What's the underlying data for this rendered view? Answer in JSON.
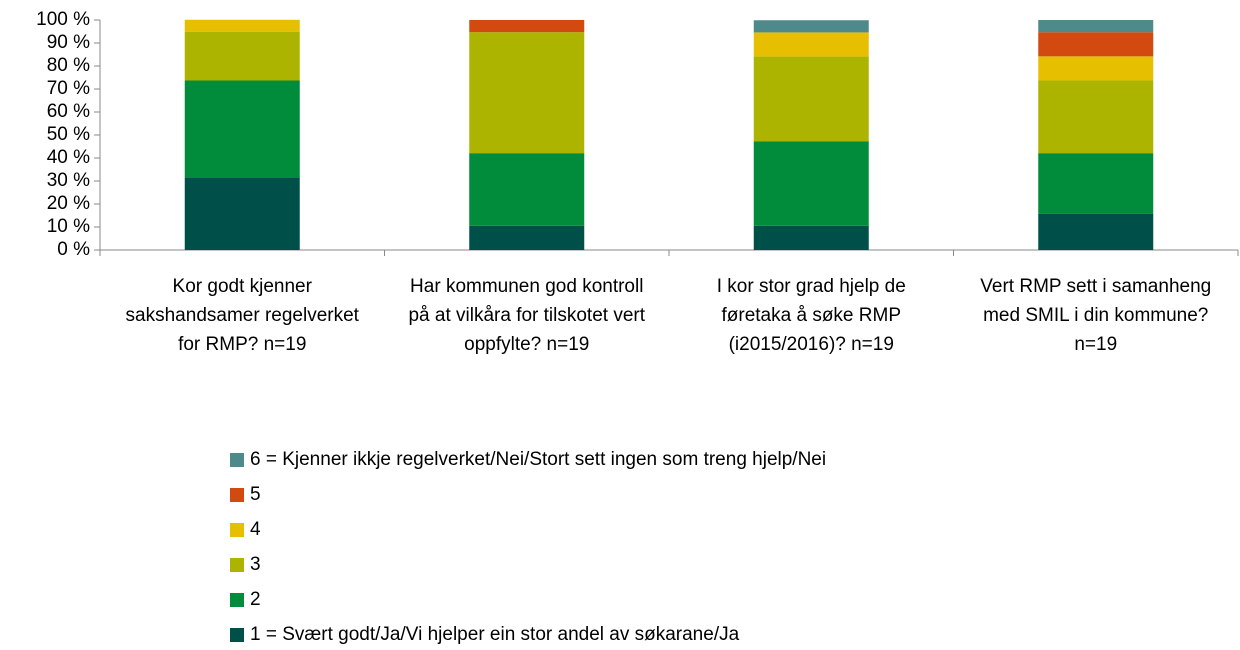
{
  "chart_data": {
    "type": "stacked_bar",
    "categories": [
      "Kor godt kjenner sakshandsamer regelverket for RMP? n=19",
      "Har kommunen god kontroll på at vilkåra for tilskotet vert oppfylte? n=19",
      "I kor stor grad hjelp de føretaka å søke RMP (i2015/2016)? n=19",
      "Vert RMP sett i samanheng med SMIL i din kommune? n=19"
    ],
    "series": [
      {
        "name": "1 = Svært godt/Ja/Vi hjelper ein stor andel av søkarane/Ja",
        "color": "#00504a",
        "values": [
          31.6,
          10.5,
          10.5,
          15.8
        ]
      },
      {
        "name": "2",
        "color": "#008c3a",
        "values": [
          42.1,
          31.6,
          36.8,
          26.3
        ]
      },
      {
        "name": "3",
        "color": "#adb400",
        "values": [
          21.1,
          52.6,
          36.8,
          31.6
        ]
      },
      {
        "name": "4",
        "color": "#e6c000",
        "values": [
          5.3,
          0,
          10.5,
          10.5
        ]
      },
      {
        "name": "5",
        "color": "#d24a10",
        "values": [
          0,
          5.3,
          0,
          10.5
        ]
      },
      {
        "name": "6 = Kjenner ikkje regelverket/Nei/Stort sett ingen som treng hjelp/Nei",
        "color": "#4f8a8b",
        "values": [
          0,
          0,
          5.3,
          5.3
        ]
      }
    ],
    "ylim": [
      0,
      100
    ],
    "yticks": [
      {
        "value": 0,
        "label": "0 %"
      },
      {
        "value": 10,
        "label": "10 %"
      },
      {
        "value": 20,
        "label": "20 %"
      },
      {
        "value": 30,
        "label": "30 %"
      },
      {
        "value": 40,
        "label": "40 %"
      },
      {
        "value": 50,
        "label": "50 %"
      },
      {
        "value": 60,
        "label": "60 %"
      },
      {
        "value": 70,
        "label": "70 %"
      },
      {
        "value": 80,
        "label": "80 %"
      },
      {
        "value": 90,
        "label": "90 %"
      },
      {
        "value": 100,
        "label": "100 %"
      }
    ],
    "legend": "bottom"
  }
}
